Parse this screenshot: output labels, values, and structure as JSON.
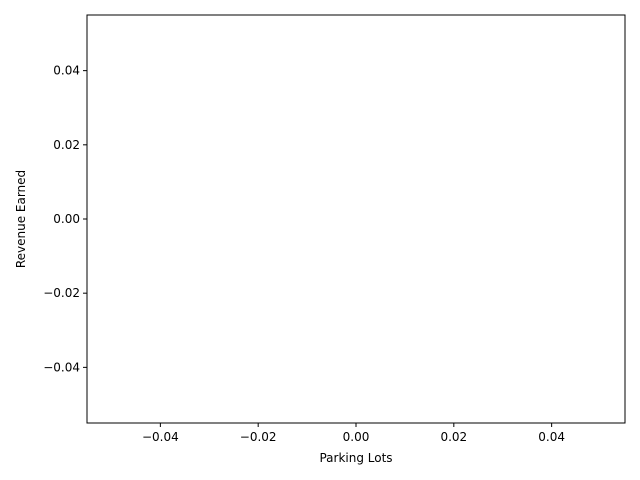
{
  "chart_data": {
    "type": "bar",
    "title": "",
    "xlabel": "Parking Lots",
    "ylabel": "Revenue Earned",
    "categories": [],
    "values": [],
    "xlim": [
      -0.055,
      0.055
    ],
    "ylim": [
      -0.055,
      0.055
    ],
    "x_ticks": [
      "−0.04",
      "−0.02",
      "0.00",
      "0.02",
      "0.04"
    ],
    "x_tick_values": [
      -0.04,
      -0.02,
      0.0,
      0.02,
      0.04
    ],
    "y_ticks": [
      "−0.04",
      "−0.02",
      "0.00",
      "0.02",
      "0.04"
    ],
    "y_tick_values": [
      -0.04,
      -0.02,
      0.0,
      0.02,
      0.04
    ],
    "grid": false,
    "legend": "none"
  }
}
